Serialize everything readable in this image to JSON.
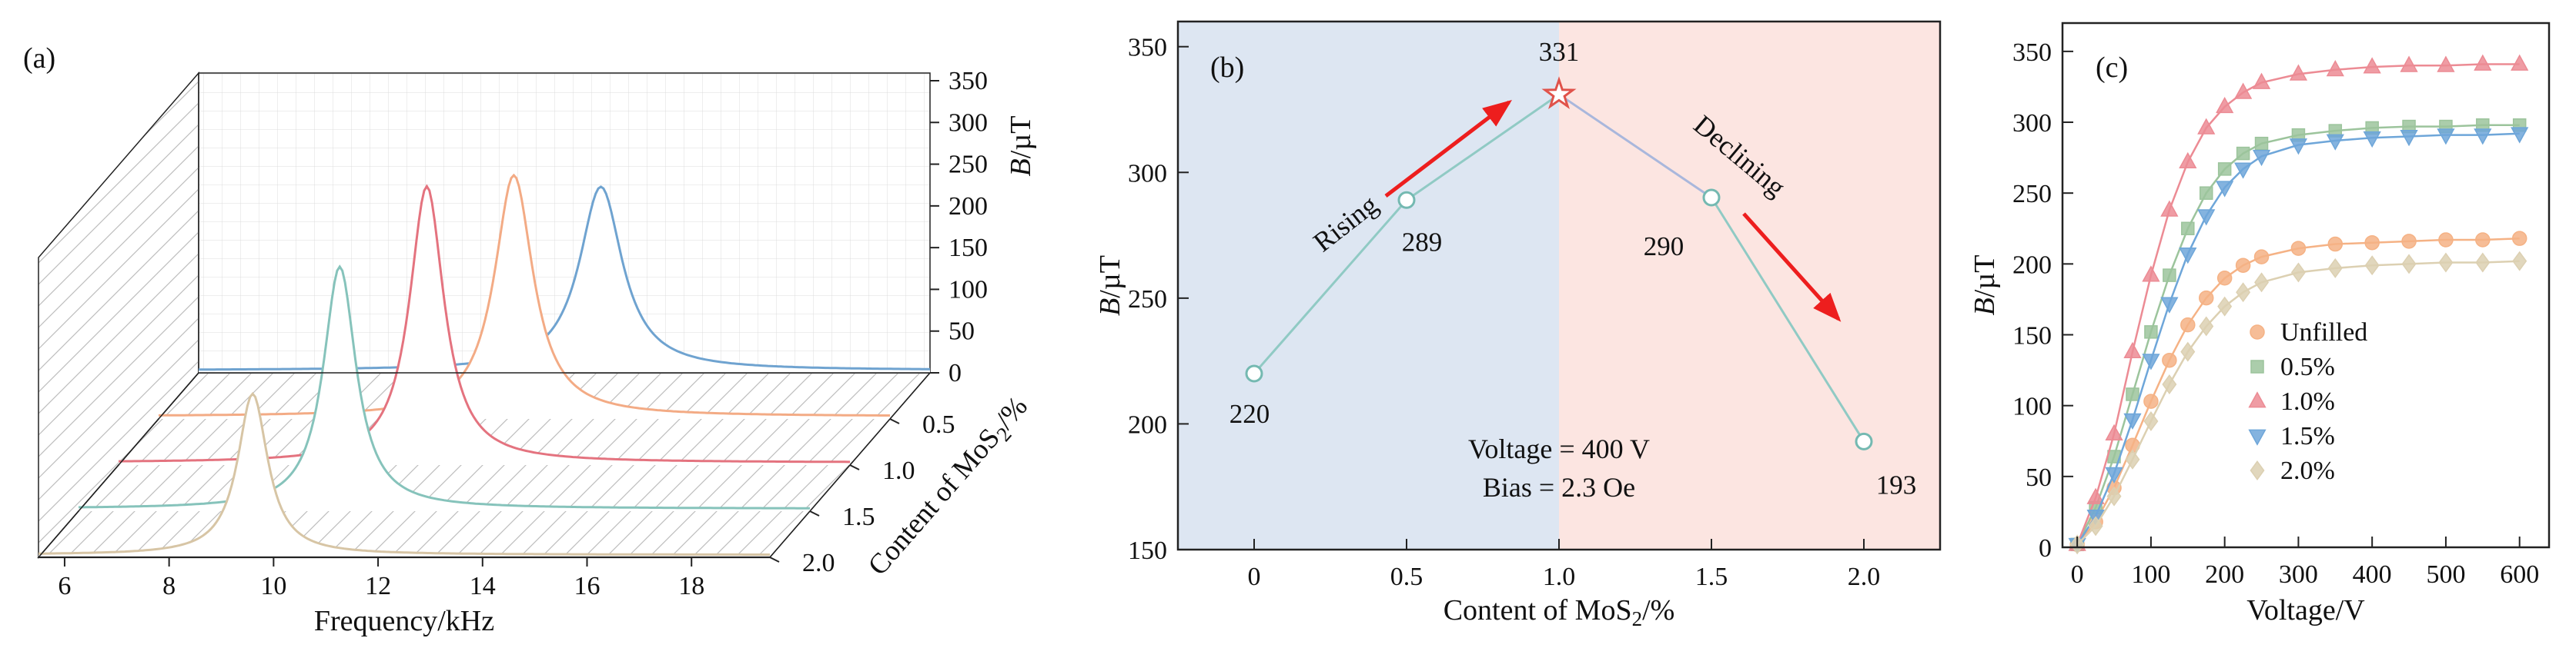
{
  "figure": {
    "background": "#ffffff"
  },
  "chart_data": [
    {
      "panel_label": "(a)",
      "type": "line",
      "subtype": "3d-waterfall",
      "xlabel": "Frequency/kHz",
      "ylabel": "B/µT",
      "zlabel": "Content of MoS₂/%",
      "xlim": [
        5.5,
        19.5
      ],
      "x_ticks": [
        6,
        8,
        10,
        12,
        14,
        16,
        18
      ],
      "b_axis_ticks": [
        0,
        50,
        100,
        150,
        200,
        250,
        300,
        350
      ],
      "b_axis_lim": [
        0,
        350
      ],
      "content_ticks": [
        0.5,
        1.0,
        1.5,
        2.0
      ],
      "series": [
        {
          "name": "Unfilled",
          "content_percent": 0,
          "color": "#6fa3d0",
          "peak_freq_khz": 13.2,
          "peak_B_uT": 220,
          "halfwidth_khz": 0.5,
          "baseline_uT": 3
        },
        {
          "name": "0.5%",
          "content_percent": 0.5,
          "color": "#f3ab85",
          "peak_freq_khz": 12.3,
          "peak_B_uT": 289,
          "halfwidth_khz": 0.45,
          "baseline_uT": 3
        },
        {
          "name": "1.0%",
          "content_percent": 1.0,
          "color": "#e4737f",
          "peak_freq_khz": 11.4,
          "peak_B_uT": 331,
          "halfwidth_khz": 0.4,
          "baseline_uT": 3
        },
        {
          "name": "1.5%",
          "content_percent": 1.5,
          "color": "#86c3bb",
          "peak_freq_khz": 10.5,
          "peak_B_uT": 290,
          "halfwidth_khz": 0.38,
          "baseline_uT": 3
        },
        {
          "name": "2.0%",
          "content_percent": 2.0,
          "color": "#d7c5a5",
          "peak_freq_khz": 9.6,
          "peak_B_uT": 193,
          "halfwidth_khz": 0.35,
          "baseline_uT": 3
        }
      ]
    },
    {
      "panel_label": "(b)",
      "type": "line",
      "xlabel": "Content of MoS₂/%",
      "ylabel": "B/µT",
      "x": [
        0,
        0.5,
        1.0,
        1.5,
        2.0
      ],
      "values": [
        220,
        289,
        331,
        290,
        193
      ],
      "x_tick_labels": [
        "0",
        "0.5",
        "1.0",
        "1.5",
        "2.0"
      ],
      "y_ticks": [
        150,
        200,
        250,
        300,
        350
      ],
      "ylim": [
        150,
        360
      ],
      "point_labels": [
        "220",
        "289",
        "331",
        "290",
        "193"
      ],
      "peak_index": 2,
      "rising_label": "Rising",
      "declining_label": "Declining",
      "annotation_line1": "Voltage = 400 V",
      "annotation_line2": "Bias = 2.3 Oe",
      "region_colors": {
        "rising_bg": "#dde6f2",
        "declining_bg": "#fce5e1"
      },
      "segment_colors": [
        "#90cac4",
        "#90cac4",
        "#a9b7dc",
        "#90cac4"
      ],
      "marker_edge_color": "#74b9b1",
      "star_color": "#e0524a",
      "arrow_color": "#ed1e1e"
    },
    {
      "panel_label": "(c)",
      "type": "line",
      "xlabel": "Voltage/V",
      "ylabel": "B/µT",
      "x_ticks": [
        0,
        100,
        200,
        300,
        400,
        500,
        600
      ],
      "y_ticks": [
        0,
        50,
        100,
        150,
        200,
        250,
        300,
        350
      ],
      "xlim": [
        0,
        600
      ],
      "ylim": [
        0,
        350
      ],
      "x": [
        0,
        25,
        50,
        75,
        100,
        125,
        150,
        175,
        200,
        225,
        250,
        300,
        350,
        400,
        450,
        500,
        550,
        600
      ],
      "series": [
        {
          "name": "Unfilled",
          "marker": "circle",
          "color": "#f5b285",
          "values": [
            2,
            18,
            42,
            72,
            103,
            132,
            157,
            176,
            190,
            199,
            205,
            211,
            214,
            215,
            216,
            217,
            217,
            218
          ]
        },
        {
          "name": "0.5%",
          "marker": "square",
          "color": "#9cc49c",
          "values": [
            2,
            28,
            64,
            108,
            152,
            192,
            225,
            250,
            267,
            278,
            285,
            291,
            294,
            296,
            297,
            297,
            298,
            298
          ]
        },
        {
          "name": "1.0%",
          "marker": "triangle-up",
          "color": "#ec8b94",
          "values": [
            2,
            35,
            80,
            138,
            192,
            238,
            272,
            296,
            311,
            321,
            328,
            334,
            337,
            339,
            340,
            340,
            341,
            341
          ]
        },
        {
          "name": "1.5%",
          "marker": "triangle-down",
          "color": "#6ea6d9",
          "values": [
            2,
            22,
            52,
            90,
            132,
            172,
            207,
            234,
            254,
            267,
            276,
            284,
            287,
            289,
            290,
            291,
            291,
            292
          ]
        },
        {
          "name": "2.0%",
          "marker": "diamond",
          "color": "#dcd0b2",
          "values": [
            2,
            15,
            36,
            62,
            89,
            115,
            138,
            156,
            170,
            180,
            187,
            194,
            197,
            199,
            200,
            201,
            201,
            202
          ]
        }
      ],
      "legend": {
        "entries": [
          "Unfilled",
          "0.5%",
          "1.0%",
          "1.5%",
          "2.0%"
        ]
      }
    }
  ]
}
